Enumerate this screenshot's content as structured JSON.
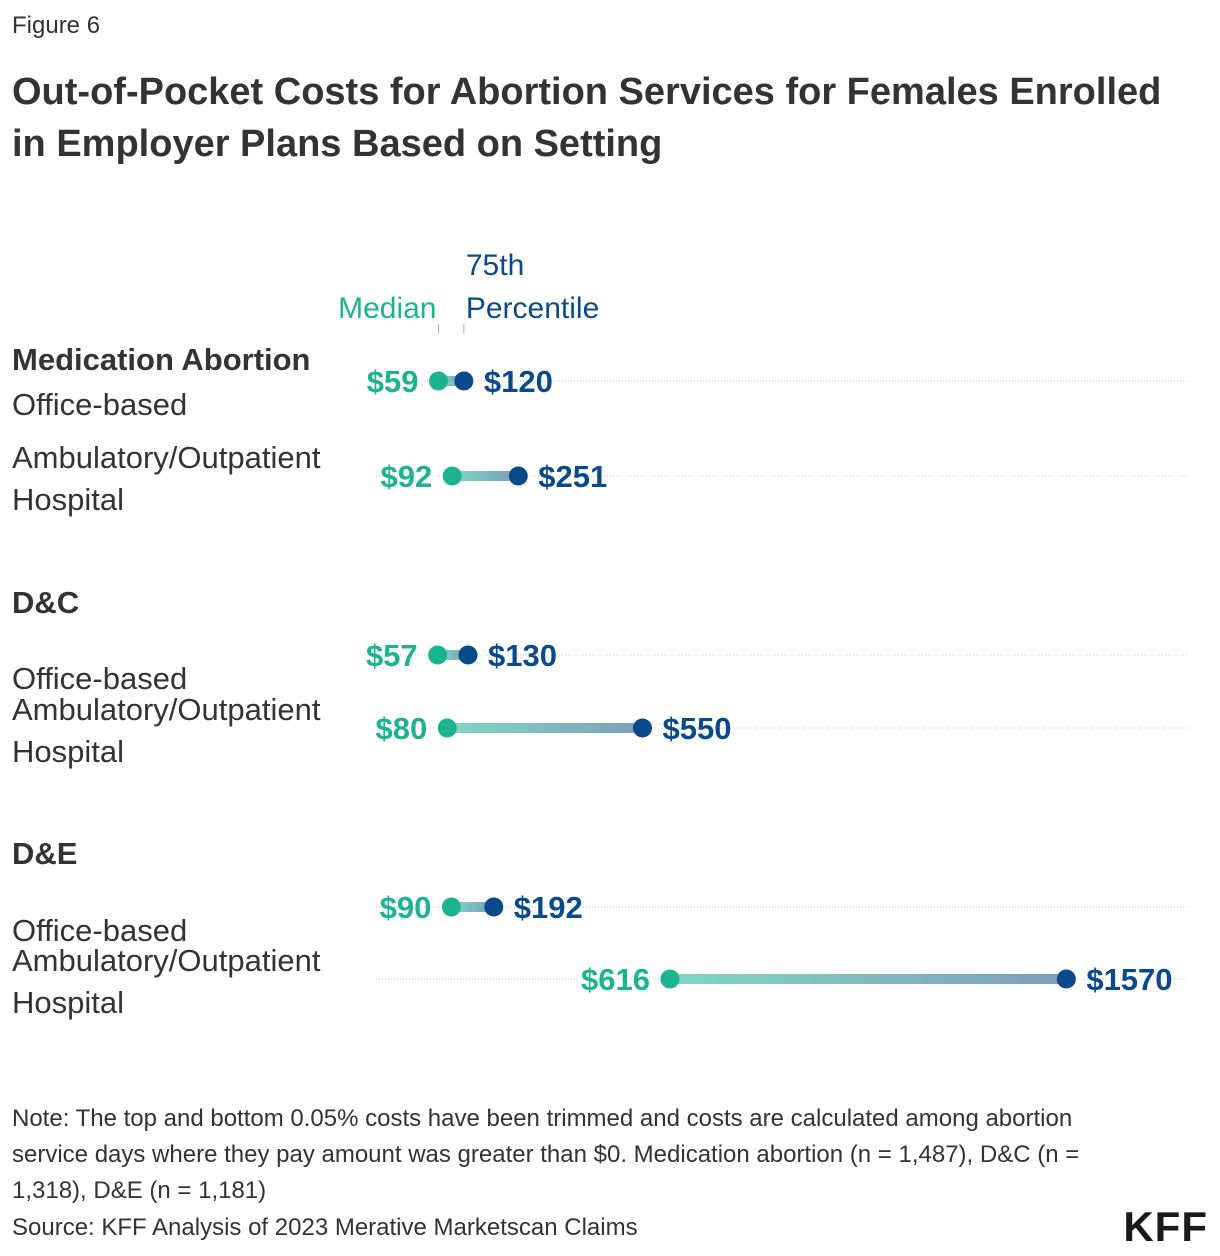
{
  "figure_label": "Figure 6",
  "title": "Out-of-Pocket Costs for Abortion Services for Females Enrolled in Employer Plans Based on Setting",
  "note": "Note: The top and bottom 0.05% costs have been trimmed and costs are calculated among abortion service days where they pay amount was greater than $0. Medication abortion (n = 1,487), D&C (n = 1,318), D&E (n = 1,181)",
  "source": "Source: KFF Analysis of 2023 Merative Marketscan Claims",
  "logo_text": "KFF",
  "colors": {
    "median": "#1cb48f",
    "p75": "#0a4a8a",
    "text": "#333333",
    "grid": "#c8c8c8"
  },
  "chart_data": {
    "type": "dumbbell",
    "title": "Out-of-Pocket Costs for Abortion Services for Females Enrolled in Employer Plans Based on Setting",
    "legend": {
      "median_label": "Median",
      "p75_label_line1": "75th",
      "p75_label_line2": "Percentile"
    },
    "x_range": [
      0,
      1600
    ],
    "currency_prefix": "$",
    "groups": [
      {
        "name": "Medication Abortion",
        "rows": [
          {
            "label_lines": [
              "Office-based"
            ],
            "median": 59,
            "p75": 120
          },
          {
            "label_lines": [
              "Ambulatory/Outpatient",
              "Hospital"
            ],
            "median": 92,
            "p75": 251
          }
        ]
      },
      {
        "name": "D&C",
        "rows": [
          {
            "label_lines": [
              "Office-based"
            ],
            "median": 57,
            "p75": 130
          },
          {
            "label_lines": [
              "Ambulatory/Outpatient",
              "Hospital"
            ],
            "median": 80,
            "p75": 550
          }
        ]
      },
      {
        "name": "D&E",
        "rows": [
          {
            "label_lines": [
              "Office-based"
            ],
            "median": 90,
            "p75": 192
          },
          {
            "label_lines": [
              "Ambulatory/Outpatient",
              "Hospital"
            ],
            "median": 616,
            "p75": 1570
          }
        ]
      }
    ]
  }
}
